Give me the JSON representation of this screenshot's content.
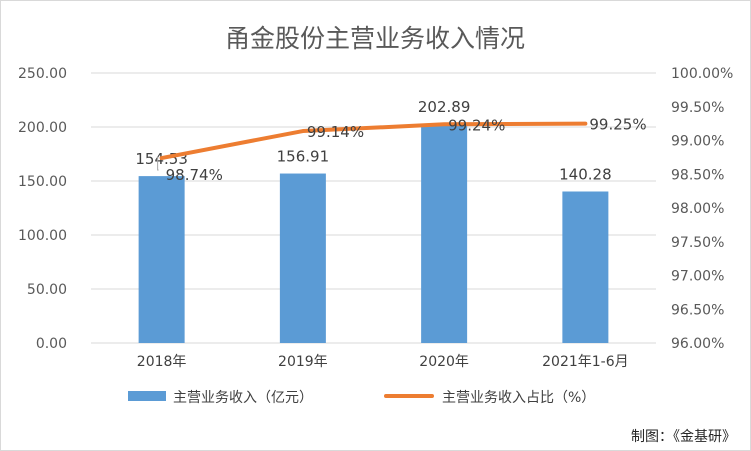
{
  "chart_data": {
    "type": "bar",
    "title": "甬金股份主营业务收入情况",
    "categories": [
      "2018年",
      "2019年",
      "2020年",
      "2021年1-6月"
    ],
    "series": [
      {
        "name": "主营业务收入（亿元）",
        "type": "bar",
        "axis": "left",
        "values": [
          154.53,
          156.91,
          202.89,
          140.28
        ],
        "labels": [
          "154.53",
          "156.91",
          "202.89",
          "140.28"
        ],
        "color": "#5b9bd5"
      },
      {
        "name": "主营业务收入占比（%）",
        "type": "line",
        "axis": "right",
        "values": [
          98.74,
          99.14,
          99.24,
          99.25
        ],
        "labels": [
          "98.74%",
          "99.14%",
          "99.24%",
          "99.25%"
        ],
        "color": "#ed7d31"
      }
    ],
    "y_left": {
      "range": [
        0,
        250
      ],
      "ticks": [
        "0.00",
        "50.00",
        "100.00",
        "150.00",
        "200.00",
        "250.00"
      ]
    },
    "y_right": {
      "range": [
        96,
        100
      ],
      "ticks": [
        "96.00%",
        "96.50%",
        "97.00%",
        "97.50%",
        "98.00%",
        "98.50%",
        "99.00%",
        "99.50%",
        "100.00%"
      ]
    },
    "grid": true,
    "legend": "bottom",
    "source_note": "制图：《金基研》"
  }
}
